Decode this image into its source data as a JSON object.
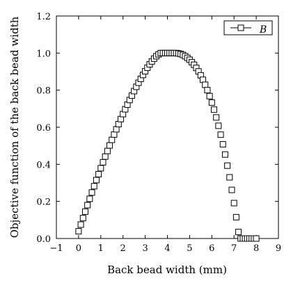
{
  "chart_data": {
    "type": "scatter",
    "title": "",
    "xlabel": "Back bead width (mm)",
    "ylabel": "Objective function of the back bead width",
    "xlim": [
      -1,
      9
    ],
    "ylim": [
      0,
      1.2
    ],
    "xticks": [
      "-1",
      "0",
      "1",
      "2",
      "3",
      "4",
      "5",
      "6",
      "7",
      "8",
      "9"
    ],
    "yticks": [
      "0.0",
      "0.2",
      "0.4",
      "0.6",
      "0.8",
      "1.0",
      "1.2"
    ],
    "grid": false,
    "legend_position": "top-right",
    "marker": "open-square",
    "series": [
      {
        "name": "B",
        "x": [
          0.0,
          0.1,
          0.2,
          0.3,
          0.4,
          0.5,
          0.6,
          0.7,
          0.8,
          0.9,
          1.0,
          1.1,
          1.2,
          1.3,
          1.4,
          1.5,
          1.6,
          1.7,
          1.8,
          1.9,
          2.0,
          2.1,
          2.2,
          2.3,
          2.4,
          2.5,
          2.6,
          2.7,
          2.8,
          2.9,
          3.0,
          3.1,
          3.2,
          3.3,
          3.4,
          3.5,
          3.6,
          3.7,
          3.8,
          3.9,
          4.0,
          4.1,
          4.2,
          4.3,
          4.4,
          4.5,
          4.6,
          4.7,
          4.8,
          4.9,
          5.0,
          5.1,
          5.2,
          5.3,
          5.4,
          5.5,
          5.6,
          5.7,
          5.8,
          5.9,
          6.0,
          6.1,
          6.2,
          6.3,
          6.4,
          6.5,
          6.6,
          6.7,
          6.8,
          6.9,
          7.0,
          7.1,
          7.2,
          7.3,
          7.4,
          7.5,
          7.6,
          7.7,
          7.8,
          7.9,
          8.0
        ],
        "y": [
          0.039,
          0.075,
          0.11,
          0.145,
          0.18,
          0.214,
          0.248,
          0.282,
          0.315,
          0.347,
          0.379,
          0.411,
          0.442,
          0.472,
          0.502,
          0.532,
          0.561,
          0.589,
          0.617,
          0.644,
          0.671,
          0.697,
          0.722,
          0.747,
          0.771,
          0.795,
          0.818,
          0.84,
          0.861,
          0.882,
          0.902,
          0.921,
          0.939,
          0.955,
          0.97,
          0.983,
          0.993,
          1.0,
          1.0,
          1.0,
          1.0,
          1.0,
          1.0,
          1.0,
          1.0,
          0.998,
          0.995,
          0.99,
          0.983,
          0.974,
          0.964,
          0.951,
          0.937,
          0.92,
          0.901,
          0.88,
          0.856,
          0.829,
          0.8,
          0.768,
          0.733,
          0.695,
          0.653,
          0.608,
          0.56,
          0.508,
          0.453,
          0.393,
          0.33,
          0.262,
          0.191,
          0.115,
          0.035,
          0.0,
          0.0,
          0.0,
          0.0,
          0.0,
          0.0,
          0.0,
          0.0
        ]
      }
    ]
  }
}
